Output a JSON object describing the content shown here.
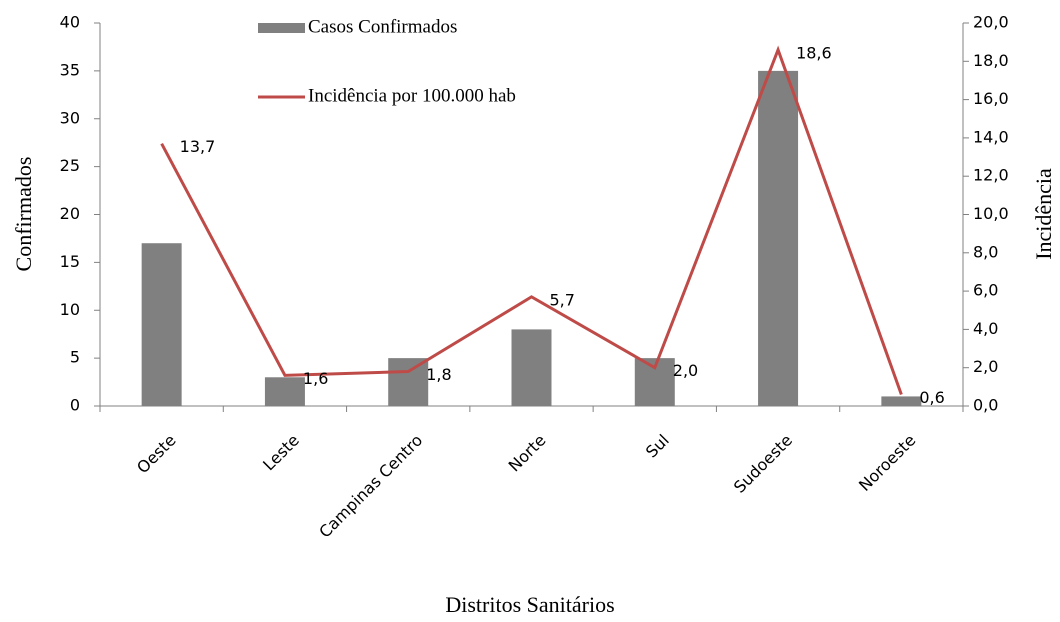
{
  "chart_data": {
    "type": "bar_line",
    "xlabel": "Distritos Sanitários",
    "ylabel": "Confirmados",
    "y2label": "Incidência",
    "categories": [
      "Oeste",
      "Leste",
      "Campinas Centro",
      "Norte",
      "Sul",
      "Sudoeste",
      "Noroeste"
    ],
    "series": [
      {
        "name": "Casos Confirmados",
        "type": "bar",
        "color": "#808080",
        "values": [
          17,
          3,
          5,
          8,
          5,
          35,
          1
        ]
      },
      {
        "name": "Incidência por 100.000 hab",
        "type": "line",
        "axis": "y2",
        "color": "#be4b48",
        "values": [
          13.7,
          1.6,
          1.8,
          5.7,
          2.0,
          18.6,
          0.6
        ],
        "value_labels": [
          "13,7",
          "1,6",
          "1,8",
          "5,7",
          "2,0",
          "18,6",
          "0,6"
        ]
      }
    ],
    "ylim": [
      0,
      40
    ],
    "yticks": [
      0,
      5,
      10,
      15,
      20,
      25,
      30,
      35,
      40
    ],
    "y2lim": [
      0,
      20
    ],
    "y2ticks": [
      {
        "value": 0,
        "label": "0,0"
      },
      {
        "value": 2,
        "label": "2,0"
      },
      {
        "value": 4,
        "label": "4,0"
      },
      {
        "value": 6,
        "label": "6,0"
      },
      {
        "value": 8,
        "label": "8,0"
      },
      {
        "value": 10,
        "label": "10,0"
      },
      {
        "value": 12,
        "label": "12,0"
      },
      {
        "value": 14,
        "label": "14,0"
      },
      {
        "value": 16,
        "label": "16,0"
      },
      {
        "value": 18,
        "label": "18,0"
      },
      {
        "value": 20,
        "label": "20,0"
      }
    ]
  }
}
